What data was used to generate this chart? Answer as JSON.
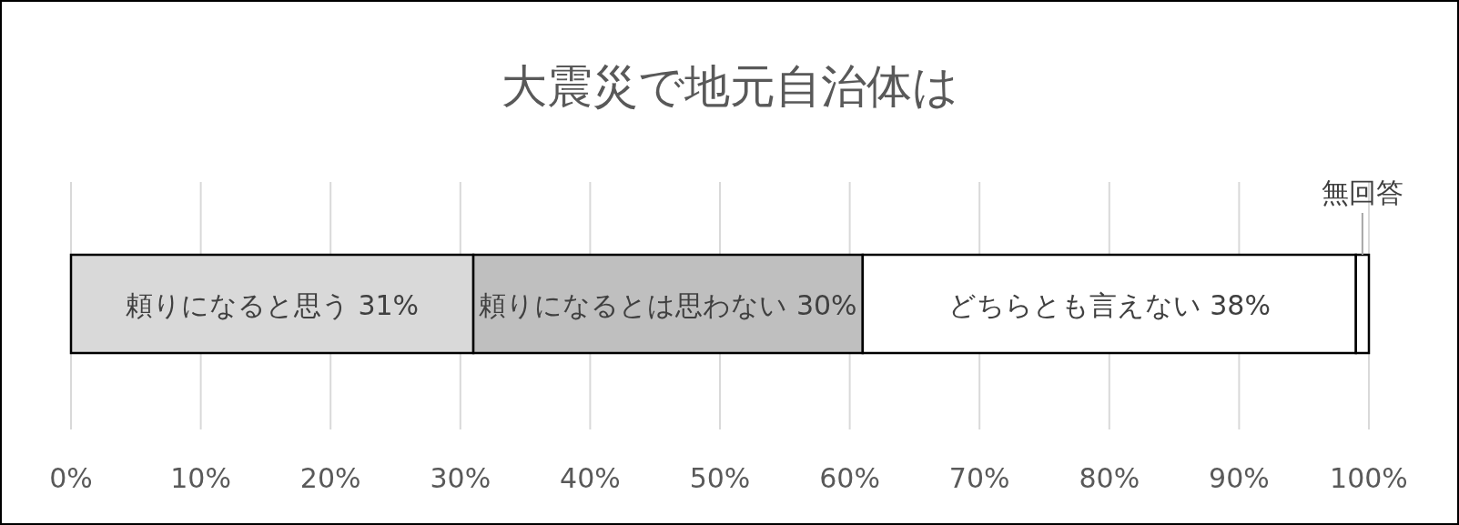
{
  "chart_data": {
    "type": "bar",
    "orientation": "horizontal",
    "stacked": true,
    "title": "大震災で地元自治体は",
    "categories": [
      null
    ],
    "series": [
      {
        "name": "頼りになると思う",
        "color": "#d9d9d9",
        "values": [
          31
        ],
        "value_labels": [
          "31%"
        ]
      },
      {
        "name": "頼りになるとは思わない",
        "color": "#bfbfbf",
        "values": [
          30
        ],
        "value_labels": [
          "30%"
        ]
      },
      {
        "name": "どちらとも言えない",
        "color": "#ffffff",
        "values": [
          38
        ],
        "value_labels": [
          "38%"
        ]
      },
      {
        "name": "無回答",
        "color": "#ffffff",
        "values": [
          1
        ],
        "value_labels": [
          null
        ]
      }
    ],
    "xlim": [
      0,
      100
    ],
    "xticks": [
      {
        "value": 0,
        "label": "0%"
      },
      {
        "value": 10,
        "label": "10%"
      },
      {
        "value": 20,
        "label": "20%"
      },
      {
        "value": 30,
        "label": "30%"
      },
      {
        "value": 40,
        "label": "40%"
      },
      {
        "value": 50,
        "label": "50%"
      },
      {
        "value": 60,
        "label": "60%"
      },
      {
        "value": 70,
        "label": "70%"
      },
      {
        "value": 80,
        "label": "80%"
      },
      {
        "value": 90,
        "label": "90%"
      },
      {
        "value": 100,
        "label": "100%"
      }
    ],
    "grid": "x",
    "tick_labels": "x"
  }
}
